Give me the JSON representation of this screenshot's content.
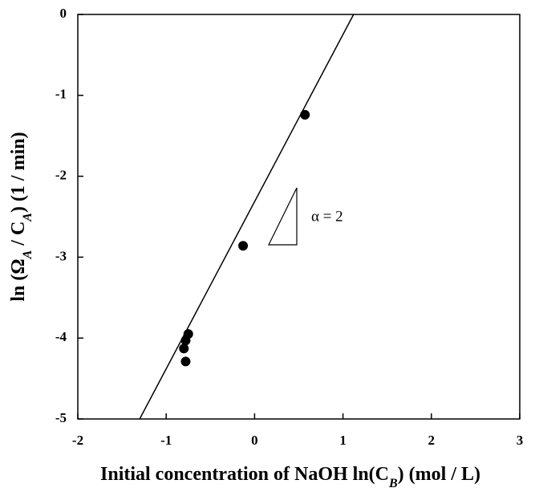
{
  "chart_data": {
    "type": "scatter",
    "xlabel": [
      "Initial concentration of NaOH ln(C",
      "B",
      ") (mol / L)"
    ],
    "ylabel": [
      "ln (Ω",
      "A",
      " / C",
      "A",
      ") (1 / min)"
    ],
    "annotation": "α = 2",
    "x": [
      0.57,
      -0.13,
      -0.75,
      -0.78,
      -0.8,
      -0.78
    ],
    "values": [
      -1.24,
      -2.86,
      -3.95,
      -4.03,
      -4.13,
      -4.29
    ],
    "color": "#000000",
    "fit": {
      "x": [
        -1.3,
        1.12
      ],
      "values": [
        -5,
        0
      ]
    },
    "xlim": [
      -2,
      3
    ],
    "ylim": [
      -5,
      0
    ],
    "xticks": [
      -2,
      -1,
      0,
      1,
      2,
      3
    ],
    "yticks": [
      0,
      -1,
      -2,
      -3,
      -4,
      -5
    ]
  }
}
